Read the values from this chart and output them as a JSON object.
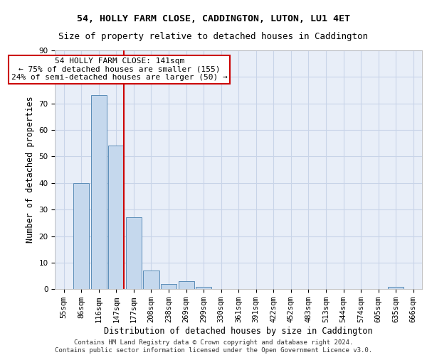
{
  "title": "54, HOLLY FARM CLOSE, CADDINGTON, LUTON, LU1 4ET",
  "subtitle": "Size of property relative to detached houses in Caddington",
  "xlabel": "Distribution of detached houses by size in Caddington",
  "ylabel": "Number of detached properties",
  "categories": [
    "55sqm",
    "86sqm",
    "116sqm",
    "147sqm",
    "177sqm",
    "208sqm",
    "238sqm",
    "269sqm",
    "299sqm",
    "330sqm",
    "361sqm",
    "391sqm",
    "422sqm",
    "452sqm",
    "483sqm",
    "513sqm",
    "544sqm",
    "574sqm",
    "605sqm",
    "635sqm",
    "666sqm"
  ],
  "values": [
    0,
    40,
    73,
    54,
    27,
    7,
    2,
    3,
    1,
    0,
    0,
    0,
    0,
    0,
    0,
    0,
    0,
    0,
    0,
    1,
    0
  ],
  "bar_color": "#c5d8ed",
  "bar_edgecolor": "#5b8db8",
  "grid_color": "#c8d4e8",
  "background_color": "#e8eef8",
  "vline_x": 3.45,
  "vline_color": "#cc0000",
  "annotation_line1": "54 HOLLY FARM CLOSE: 141sqm",
  "annotation_line2": "← 75% of detached houses are smaller (155)",
  "annotation_line3": "24% of semi-detached houses are larger (50) →",
  "annotation_box_edgecolor": "#cc0000",
  "ylim": [
    0,
    90
  ],
  "yticks": [
    0,
    10,
    20,
    30,
    40,
    50,
    60,
    70,
    80,
    90
  ],
  "footer_line1": "Contains HM Land Registry data © Crown copyright and database right 2024.",
  "footer_line2": "Contains public sector information licensed under the Open Government Licence v3.0.",
  "title_fontsize": 9.5,
  "subtitle_fontsize": 9,
  "tick_fontsize": 7.5,
  "ylabel_fontsize": 8.5,
  "xlabel_fontsize": 8.5,
  "annotation_fontsize": 8,
  "footer_fontsize": 6.5
}
